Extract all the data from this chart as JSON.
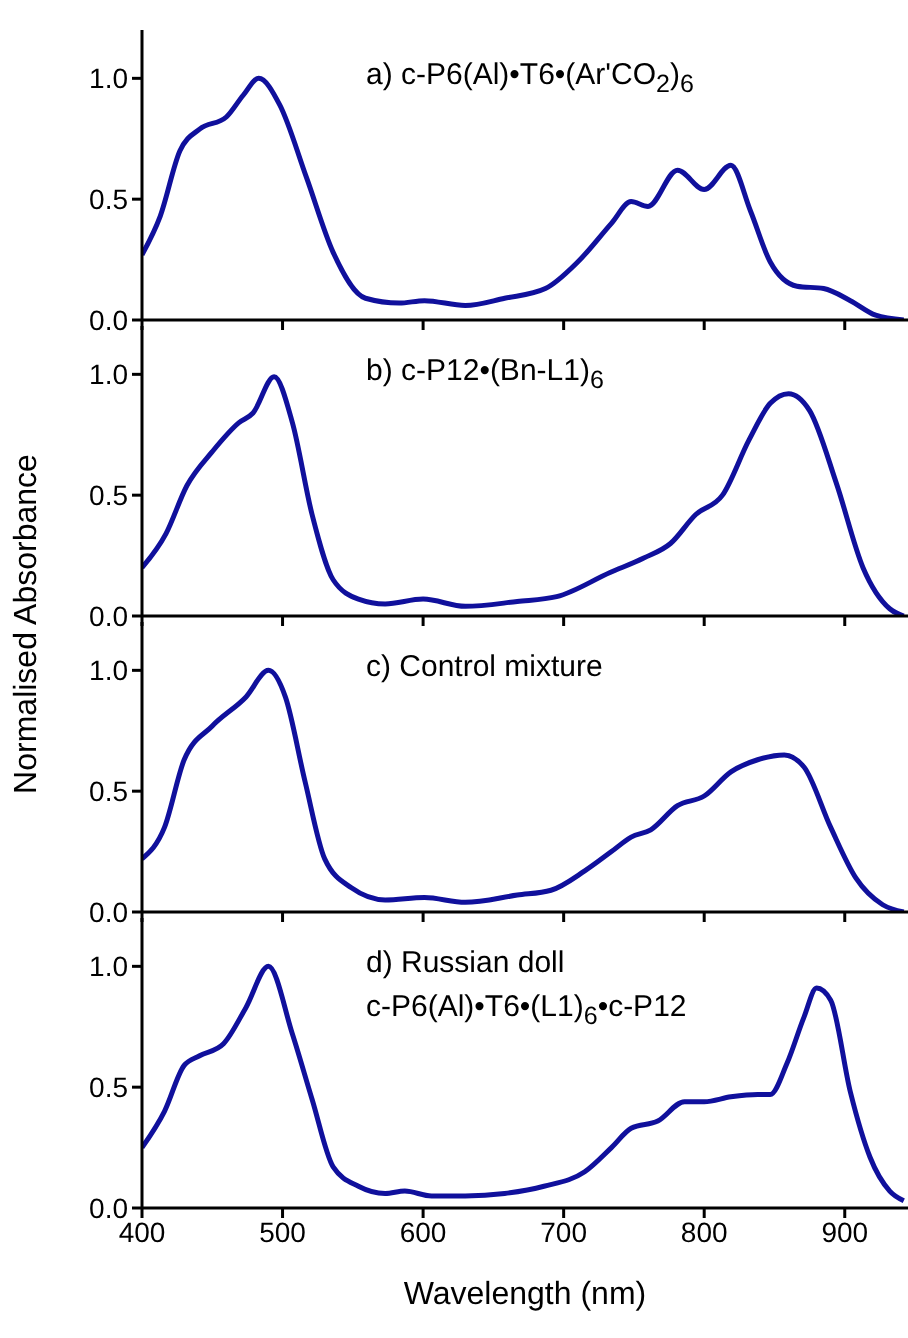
{
  "chart_data": [
    {
      "type": "line",
      "annotations": [
        "a) c-P6(Al)•T6•(Ar'CO$_{2}$)$_{6}$"
      ],
      "tick_labels": "y",
      "xlim": [
        400,
        945
      ],
      "xticks": [
        400,
        500,
        600,
        700,
        800,
        900
      ],
      "ylim": [
        0,
        1.2
      ],
      "yticks": [
        {
          "value": 0,
          "label": "0.0"
        },
        {
          "value": 0.5,
          "label": "0.5"
        },
        {
          "value": 1,
          "label": "1.0"
        }
      ],
      "x": [
        400,
        413,
        427,
        441,
        460,
        472,
        483,
        498,
        517,
        536,
        559,
        583,
        601,
        630,
        658,
        687,
        710,
        734,
        748,
        760,
        781,
        800,
        819,
        833,
        847,
        866,
        885,
        904,
        922,
        942
      ],
      "series": [
        {
          "color": "#10109c",
          "values": [
            0.27,
            0.43,
            0.7,
            0.79,
            0.84,
            0.93,
            1.0,
            0.89,
            0.59,
            0.28,
            0.09,
            0.07,
            0.08,
            0.06,
            0.09,
            0.13,
            0.24,
            0.4,
            0.49,
            0.47,
            0.62,
            0.54,
            0.64,
            0.45,
            0.24,
            0.14,
            0.13,
            0.08,
            0.02,
            0.0
          ]
        }
      ]
    },
    {
      "type": "line",
      "ylabel": "Normalised Absorbance",
      "annotations": [
        "b) c-P12•(Bn-L1)$_{6}$"
      ],
      "tick_labels": "y",
      "xlim": [
        400,
        945
      ],
      "xticks": [
        400,
        500,
        600,
        700,
        800,
        900
      ],
      "ylim": [
        0,
        1.2
      ],
      "yticks": [
        {
          "value": 0,
          "label": "0.0"
        },
        {
          "value": 0.5,
          "label": "0.5"
        },
        {
          "value": 1,
          "label": "1.0"
        }
      ],
      "x": [
        400,
        417,
        432,
        450,
        469,
        479,
        494,
        507,
        521,
        536,
        554,
        573,
        600,
        630,
        667,
        695,
        733,
        757,
        776,
        794,
        813,
        832,
        847,
        860,
        875,
        894,
        913,
        932,
        942
      ],
      "series": [
        {
          "color": "#10109c",
          "values": [
            0.2,
            0.34,
            0.54,
            0.68,
            0.8,
            0.84,
            0.99,
            0.8,
            0.42,
            0.15,
            0.07,
            0.05,
            0.07,
            0.04,
            0.06,
            0.08,
            0.18,
            0.24,
            0.3,
            0.42,
            0.5,
            0.73,
            0.88,
            0.92,
            0.85,
            0.55,
            0.2,
            0.03,
            0.0
          ]
        }
      ]
    },
    {
      "type": "line",
      "annotations": [
        "c) Control mixture"
      ],
      "tick_labels": "y",
      "xlim": [
        400,
        945
      ],
      "xticks": [
        400,
        500,
        600,
        700,
        800,
        900
      ],
      "ylim": [
        0,
        1.2
      ],
      "yticks": [
        {
          "value": 0,
          "label": "0.0"
        },
        {
          "value": 0.5,
          "label": "0.5"
        },
        {
          "value": 1,
          "label": "1.0"
        }
      ],
      "x": [
        400,
        416,
        430,
        450,
        474,
        490,
        502,
        516,
        530,
        549,
        573,
        601,
        630,
        667,
        691,
        715,
        734,
        748,
        762,
        781,
        800,
        819,
        838,
        857,
        871,
        890,
        908,
        927,
        942
      ],
      "series": [
        {
          "color": "#10109c",
          "values": [
            0.22,
            0.35,
            0.63,
            0.77,
            0.89,
            1.0,
            0.89,
            0.54,
            0.22,
            0.1,
            0.05,
            0.06,
            0.04,
            0.07,
            0.09,
            0.17,
            0.25,
            0.31,
            0.34,
            0.44,
            0.48,
            0.58,
            0.63,
            0.65,
            0.6,
            0.35,
            0.14,
            0.03,
            0.0
          ]
        }
      ]
    },
    {
      "type": "line",
      "xlabel": "Wavelength (nm)",
      "annotations": [
        "d) Russian doll",
        "c-P6(Al)•T6•(L1)$_{6}$•c-P12"
      ],
      "xlim": [
        400,
        945
      ],
      "xticks": [
        400,
        500,
        600,
        700,
        800,
        900
      ],
      "ylim": [
        0,
        1.2
      ],
      "yticks": [
        {
          "value": 0,
          "label": "0.0"
        },
        {
          "value": 0.5,
          "label": "0.5"
        },
        {
          "value": 1,
          "label": "1.0"
        }
      ],
      "x": [
        400,
        416,
        430,
        441,
        458,
        474,
        490,
        507,
        521,
        536,
        554,
        573,
        587,
        606,
        630,
        658,
        686,
        715,
        734,
        748,
        767,
        786,
        800,
        819,
        838,
        847,
        859,
        871,
        880,
        890,
        904,
        918,
        932,
        942
      ],
      "series": [
        {
          "color": "#10109c",
          "values": [
            0.25,
            0.4,
            0.59,
            0.63,
            0.68,
            0.83,
            1.0,
            0.72,
            0.45,
            0.17,
            0.09,
            0.06,
            0.07,
            0.05,
            0.05,
            0.06,
            0.09,
            0.15,
            0.25,
            0.33,
            0.36,
            0.44,
            0.44,
            0.46,
            0.47,
            0.47,
            0.6,
            0.79,
            0.91,
            0.86,
            0.48,
            0.21,
            0.07,
            0.03
          ]
        }
      ]
    }
  ]
}
